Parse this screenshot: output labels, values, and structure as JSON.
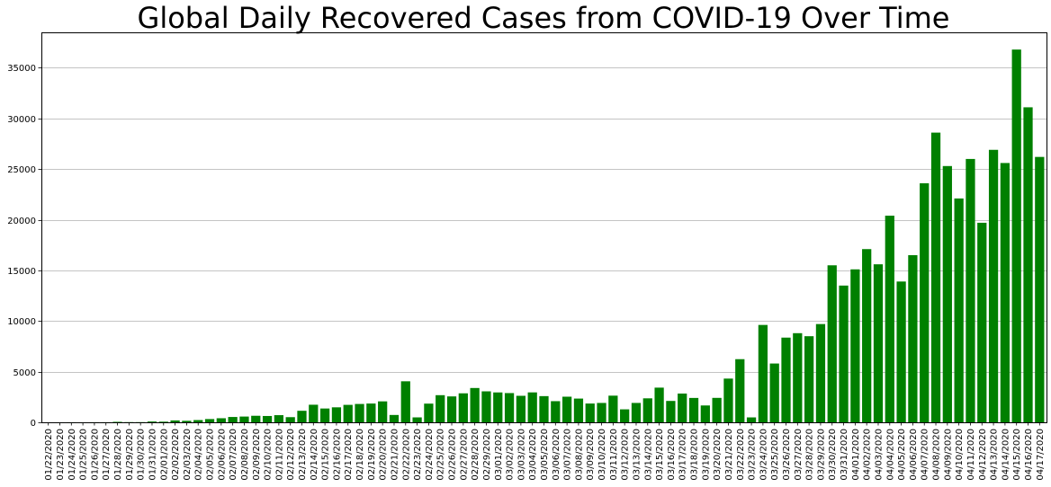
{
  "chart_data": {
    "type": "bar",
    "title": "Global Daily Recovered Cases from COVID-19 Over Time",
    "xlabel": "",
    "ylabel": "",
    "ylim": [
      0,
      38500
    ],
    "yticks": [
      0,
      5000,
      10000,
      15000,
      20000,
      25000,
      30000,
      35000
    ],
    "grid": "horizontal",
    "bar_color": "#008000",
    "categories": [
      "01/22/2020",
      "01/23/2020",
      "01/24/2020",
      "01/25/2020",
      "01/26/2020",
      "01/27/2020",
      "01/28/2020",
      "01/29/2020",
      "01/30/2020",
      "01/31/2020",
      "02/01/2020",
      "02/02/2020",
      "02/03/2020",
      "02/04/2020",
      "02/05/2020",
      "02/06/2020",
      "02/07/2020",
      "02/08/2020",
      "02/09/2020",
      "02/10/2020",
      "02/11/2020",
      "02/12/2020",
      "02/13/2020",
      "02/14/2020",
      "02/15/2020",
      "02/16/2020",
      "02/17/2020",
      "02/18/2020",
      "02/19/2020",
      "02/20/2020",
      "02/21/2020",
      "02/22/2020",
      "02/23/2020",
      "02/24/2020",
      "02/25/2020",
      "02/26/2020",
      "02/27/2020",
      "02/28/2020",
      "02/29/2020",
      "03/01/2020",
      "03/02/2020",
      "03/03/2020",
      "03/04/2020",
      "03/05/2020",
      "03/06/2020",
      "03/07/2020",
      "03/08/2020",
      "03/09/2020",
      "03/10/2020",
      "03/11/2020",
      "03/12/2020",
      "03/13/2020",
      "03/14/2020",
      "03/15/2020",
      "03/16/2020",
      "03/17/2020",
      "03/18/2020",
      "03/19/2020",
      "03/20/2020",
      "03/21/2020",
      "03/22/2020",
      "03/23/2020",
      "03/24/2020",
      "03/25/2020",
      "03/26/2020",
      "03/27/2020",
      "03/28/2020",
      "03/29/2020",
      "03/30/2020",
      "03/31/2020",
      "04/01/2020",
      "04/02/2020",
      "04/03/2020",
      "04/04/2020",
      "04/05/2020",
      "04/06/2020",
      "04/07/2020",
      "04/08/2020",
      "04/09/2020",
      "04/10/2020",
      "04/11/2020",
      "04/12/2020",
      "04/13/2020",
      "04/14/2020",
      "04/15/2020",
      "04/16/2020",
      "04/17/2020"
    ],
    "values": [
      0,
      2,
      6,
      3,
      9,
      9,
      46,
      19,
      17,
      79,
      62,
      187,
      150,
      222,
      322,
      402,
      526,
      568,
      645,
      624,
      705,
      508,
      1137,
      1735,
      1363,
      1480,
      1723,
      1811,
      1853,
      2067,
      725,
      4050,
      486,
      1844,
      2679,
      2557,
      2862,
      3387,
      3058,
      2950,
      2886,
      2617,
      2953,
      2585,
      2087,
      2529,
      2344,
      1854,
      1912,
      2631,
      1280,
      1913,
      2368,
      3423,
      2110,
      2838,
      2406,
      1663,
      2412,
      4317,
      6234,
      484,
      9613,
      5804,
      8362,
      8800,
      8500,
      9700,
      15500,
      13500,
      15100,
      17100,
      15600,
      20400,
      13900,
      16500,
      23600,
      28600,
      25300,
      22100,
      26000,
      19700,
      26900,
      25600,
      36800,
      31100,
      26200
    ]
  }
}
